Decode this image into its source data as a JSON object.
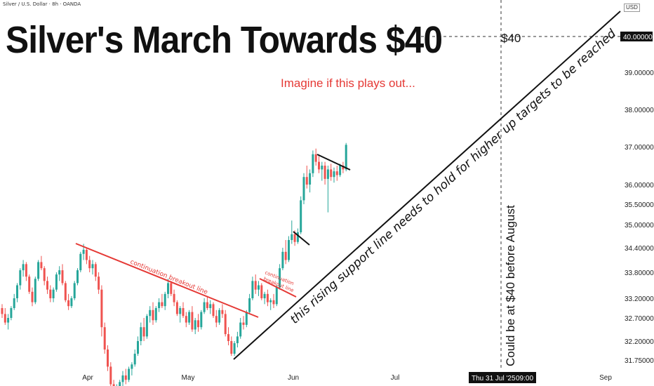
{
  "header": {
    "symbol_line": "Silver / U.S. Dollar · 8h · OANDA",
    "currency": "USD"
  },
  "chart_data": {
    "type": "candlestick",
    "title": "Silver's March Towards $40",
    "subtitle": "Imagine if this plays out...",
    "x_ticks": [
      "Apr",
      "May",
      "Jun",
      "Jul",
      "Sep"
    ],
    "y_ticks": [
      "39.00000",
      "38.00000",
      "37.00000",
      "36.00000",
      "35.50000",
      "35.00000",
      "34.40000",
      "33.80000",
      "33.20000",
      "32.70000",
      "32.20000",
      "31.75000"
    ],
    "target_price_label": "40.00000",
    "target_line_label": "$40",
    "date_marker": {
      "date": "Thu 31 Jul '25",
      "time": "09:00"
    },
    "vertical_note": "Could be at $40 before August",
    "annotations": {
      "support": "this rising support line needs to hold for higher up targets to be reached",
      "breakout_1": "continuation breakout line",
      "breakout_2_line1": "continuation",
      "breakout_2_line2": "breakout line"
    },
    "colors": {
      "up": "#26a69a",
      "down": "#ef5350",
      "resistance": "#e53935",
      "support": "#111111"
    },
    "y_range": [
      31.6,
      40.3
    ],
    "candles": [
      [
        32.95,
        33.05,
        32.7,
        32.8
      ],
      [
        32.8,
        32.95,
        32.55,
        32.6
      ],
      [
        32.6,
        32.8,
        32.45,
        32.7
      ],
      [
        32.7,
        33.0,
        32.65,
        32.95
      ],
      [
        32.95,
        33.3,
        32.9,
        33.2
      ],
      [
        33.2,
        33.55,
        33.1,
        33.5
      ],
      [
        33.5,
        33.9,
        33.4,
        33.85
      ],
      [
        33.85,
        34.1,
        33.7,
        34.0
      ],
      [
        34.0,
        34.05,
        33.6,
        33.7
      ],
      [
        33.7,
        33.75,
        33.3,
        33.35
      ],
      [
        33.35,
        33.45,
        33.0,
        33.1
      ],
      [
        33.1,
        33.7,
        33.05,
        33.65
      ],
      [
        33.65,
        34.1,
        33.6,
        34.05
      ],
      [
        34.05,
        34.2,
        33.85,
        33.9
      ],
      [
        33.9,
        33.95,
        33.5,
        33.6
      ],
      [
        33.6,
        33.7,
        33.3,
        33.4
      ],
      [
        33.4,
        33.5,
        33.1,
        33.2
      ],
      [
        33.2,
        33.45,
        33.1,
        33.4
      ],
      [
        33.4,
        33.8,
        33.35,
        33.75
      ],
      [
        33.75,
        33.95,
        33.6,
        33.85
      ],
      [
        33.85,
        34.0,
        33.5,
        33.55
      ],
      [
        33.55,
        33.6,
        33.1,
        33.15
      ],
      [
        33.15,
        33.3,
        32.9,
        33.0
      ],
      [
        33.0,
        33.25,
        32.95,
        33.2
      ],
      [
        33.2,
        33.6,
        33.15,
        33.55
      ],
      [
        33.55,
        33.9,
        33.5,
        33.85
      ],
      [
        33.85,
        34.3,
        33.8,
        34.25
      ],
      [
        34.25,
        34.5,
        34.1,
        34.35
      ],
      [
        34.35,
        34.4,
        34.0,
        34.1
      ],
      [
        34.1,
        34.2,
        33.8,
        33.9
      ],
      [
        33.9,
        34.1,
        33.75,
        34.0
      ],
      [
        34.0,
        34.05,
        33.6,
        33.7
      ],
      [
        33.7,
        33.8,
        33.3,
        33.4
      ],
      [
        33.4,
        33.5,
        32.3,
        32.5
      ],
      [
        32.5,
        32.6,
        31.9,
        32.0
      ],
      [
        32.0,
        32.1,
        31.5,
        31.6
      ],
      [
        31.6,
        31.7,
        31.1,
        31.2
      ],
      [
        31.2,
        31.3,
        30.9,
        31.0
      ],
      [
        31.0,
        31.2,
        30.85,
        31.1
      ],
      [
        31.1,
        31.3,
        30.95,
        31.25
      ],
      [
        31.25,
        31.5,
        31.15,
        31.4
      ],
      [
        31.4,
        31.55,
        31.2,
        31.3
      ],
      [
        31.3,
        31.6,
        31.25,
        31.55
      ],
      [
        31.55,
        31.7,
        31.4,
        31.65
      ],
      [
        31.65,
        32.0,
        31.6,
        31.9
      ],
      [
        31.9,
        32.3,
        31.85,
        32.2
      ],
      [
        32.2,
        32.6,
        32.1,
        32.5
      ],
      [
        32.5,
        32.7,
        32.2,
        32.3
      ],
      [
        32.3,
        32.8,
        32.25,
        32.75
      ],
      [
        32.75,
        33.0,
        32.6,
        32.9
      ],
      [
        32.9,
        33.1,
        32.55,
        32.65
      ],
      [
        32.65,
        33.0,
        32.6,
        32.95
      ],
      [
        32.95,
        33.2,
        32.85,
        33.1
      ],
      [
        33.1,
        33.3,
        32.95,
        33.0
      ],
      [
        33.0,
        33.35,
        32.9,
        33.3
      ],
      [
        33.3,
        33.65,
        33.2,
        33.55
      ],
      [
        33.55,
        33.6,
        33.25,
        33.3
      ],
      [
        33.3,
        33.4,
        33.0,
        33.1
      ],
      [
        33.1,
        33.15,
        32.75,
        32.8
      ],
      [
        32.8,
        33.0,
        32.6,
        32.95
      ],
      [
        32.95,
        33.1,
        32.7,
        32.75
      ],
      [
        32.75,
        32.85,
        32.5,
        32.6
      ],
      [
        32.6,
        32.9,
        32.55,
        32.85
      ],
      [
        32.85,
        33.0,
        32.4,
        32.45
      ],
      [
        32.45,
        32.7,
        32.35,
        32.65
      ],
      [
        32.65,
        32.8,
        32.4,
        32.5
      ],
      [
        32.5,
        32.9,
        32.45,
        32.85
      ],
      [
        32.85,
        33.2,
        32.8,
        33.1
      ],
      [
        33.1,
        33.25,
        32.9,
        32.95
      ],
      [
        32.95,
        33.15,
        32.8,
        33.05
      ],
      [
        33.05,
        33.1,
        32.7,
        32.75
      ],
      [
        32.75,
        32.9,
        32.5,
        32.6
      ],
      [
        32.6,
        32.95,
        32.55,
        32.9
      ],
      [
        32.9,
        33.05,
        32.7,
        32.8
      ],
      [
        32.8,
        32.9,
        32.3,
        32.35
      ],
      [
        32.35,
        32.5,
        32.1,
        32.2
      ],
      [
        32.2,
        32.3,
        31.85,
        31.9
      ],
      [
        31.9,
        32.2,
        31.85,
        32.15
      ],
      [
        32.15,
        32.4,
        32.05,
        32.3
      ],
      [
        32.3,
        32.7,
        32.25,
        32.6
      ],
      [
        32.6,
        32.75,
        32.45,
        32.55
      ],
      [
        32.55,
        32.9,
        32.5,
        32.85
      ],
      [
        32.85,
        33.3,
        32.8,
        33.2
      ],
      [
        33.2,
        33.7,
        33.15,
        33.6
      ],
      [
        33.6,
        33.75,
        33.3,
        33.4
      ],
      [
        33.4,
        33.6,
        33.25,
        33.5
      ],
      [
        33.5,
        33.55,
        33.15,
        33.2
      ],
      [
        33.2,
        33.35,
        33.05,
        33.3
      ],
      [
        33.3,
        33.4,
        33.0,
        33.1
      ],
      [
        33.1,
        33.2,
        32.9,
        33.15
      ],
      [
        33.15,
        33.3,
        32.95,
        33.05
      ],
      [
        33.05,
        33.5,
        33.0,
        33.45
      ],
      [
        33.45,
        34.0,
        33.4,
        33.9
      ],
      [
        33.9,
        34.4,
        33.85,
        34.3
      ],
      [
        34.3,
        34.6,
        34.0,
        34.1
      ],
      [
        34.1,
        34.7,
        34.05,
        34.6
      ],
      [
        34.6,
        35.1,
        34.5,
        34.75
      ],
      [
        34.75,
        34.85,
        34.45,
        34.55
      ],
      [
        34.55,
        34.9,
        34.5,
        34.8
      ],
      [
        34.8,
        35.7,
        34.75,
        35.6
      ],
      [
        35.6,
        36.3,
        35.5,
        36.2
      ],
      [
        36.2,
        36.5,
        35.9,
        36.0
      ],
      [
        36.0,
        36.4,
        35.8,
        36.3
      ],
      [
        36.3,
        36.9,
        36.2,
        36.8
      ],
      [
        36.8,
        36.95,
        36.5,
        36.6
      ],
      [
        36.6,
        36.75,
        36.3,
        36.4
      ],
      [
        36.4,
        36.6,
        36.1,
        36.5
      ],
      [
        36.5,
        36.6,
        36.0,
        36.15
      ],
      [
        36.15,
        36.5,
        35.3,
        36.4
      ],
      [
        36.4,
        36.55,
        36.1,
        36.2
      ],
      [
        36.2,
        36.45,
        36.05,
        36.35
      ],
      [
        36.35,
        36.5,
        36.1,
        36.25
      ],
      [
        36.25,
        36.55,
        36.2,
        36.5
      ],
      [
        36.5,
        36.6,
        36.3,
        36.4
      ],
      [
        36.4,
        37.1,
        36.35,
        37.05
      ]
    ]
  }
}
